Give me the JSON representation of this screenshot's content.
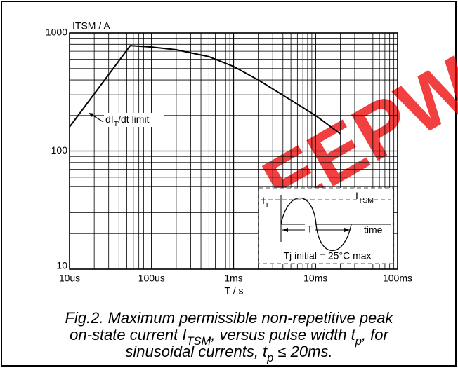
{
  "chart_data": {
    "type": "line",
    "y_label": "ITSM / A",
    "x_label": "T / s",
    "x": [
      1e-05,
      5.5e-05,
      0.0001,
      0.0002,
      0.0005,
      0.001,
      0.002,
      0.005,
      0.01,
      0.02
    ],
    "series": [
      {
        "color": "#000000",
        "values": [
          160,
          780,
          760,
          720,
          630,
          520,
          400,
          270,
          200,
          140
        ]
      }
    ],
    "xlim": [
      1e-05,
      0.1
    ],
    "ylim": [
      10,
      1000
    ],
    "log_x": true,
    "log_y": true,
    "grid": true,
    "xticks": [
      {
        "value": 1e-05,
        "label": "10us"
      },
      {
        "value": 0.0001,
        "label": "100us"
      },
      {
        "value": 0.001,
        "label": "1ms"
      },
      {
        "value": 0.01,
        "label": "10ms"
      },
      {
        "value": 0.1,
        "label": "100ms"
      }
    ],
    "yticks": [
      10,
      100,
      1000
    ],
    "annotation": [
      {
        "text": "dI"
      },
      {
        "sub": "T"
      },
      {
        "text": "/dt limit"
      }
    ],
    "inset": {
      "it": [
        {
          "text": "I"
        },
        {
          "sub": "T"
        }
      ],
      "itsm": [
        {
          "text": "I"
        },
        {
          "sub": "TSM"
        }
      ],
      "period": "T",
      "time": "time",
      "note": "Tj initial = 25°C max"
    },
    "watermark": "EEPW",
    "caption": [
      [
        {
          "text": "Fig.2.   Maximum permissible non-repetitive peak"
        }
      ],
      [
        {
          "text": "on-state current I"
        },
        {
          "sub": "TSM"
        },
        {
          "text": ", versus pulse width t"
        },
        {
          "sub": "p"
        },
        {
          "text": ", for"
        }
      ],
      [
        {
          "text": "sinusoidal currents, t"
        },
        {
          "sub": "p"
        },
        {
          "text": " ≤ 20ms."
        }
      ]
    ]
  }
}
